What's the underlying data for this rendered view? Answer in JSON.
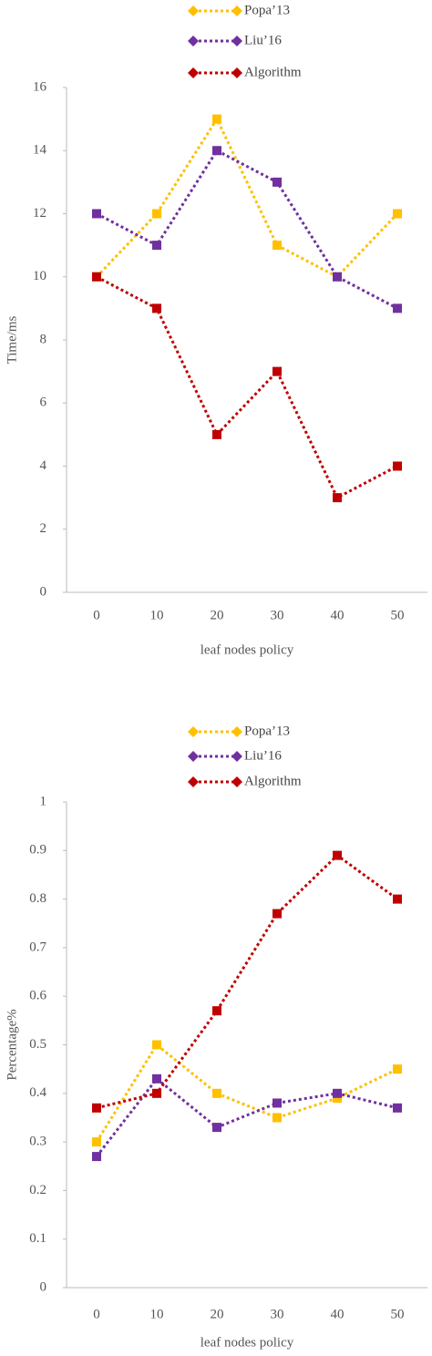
{
  "chart_data": [
    {
      "type": "line",
      "y_label": "Time/ms",
      "x_label": "leaf nodes policy",
      "categories": [
        "0",
        "10",
        "20",
        "30",
        "40",
        "50"
      ],
      "ylim": [
        0,
        16
      ],
      "yticks": [
        0,
        2,
        4,
        6,
        8,
        10,
        12,
        14,
        16
      ],
      "series": [
        {
          "name": "Popa’13",
          "color": "#FFC000",
          "values": [
            10,
            12,
            15,
            11,
            10,
            12
          ]
        },
        {
          "name": "Liu’16",
          "color": "#7030A0",
          "values": [
            12,
            11,
            14,
            13,
            10,
            9
          ]
        },
        {
          "name": "Algorithm",
          "color": "#C00000",
          "values": [
            10,
            9,
            5,
            7,
            3,
            4
          ]
        }
      ]
    },
    {
      "type": "line",
      "y_label": "Percentage%",
      "x_label": "leaf nodes policy",
      "categories": [
        "0",
        "10",
        "20",
        "30",
        "40",
        "50"
      ],
      "ylim": [
        0,
        1
      ],
      "yticks": [
        0,
        0.1,
        0.2,
        0.3,
        0.4,
        0.5,
        0.6,
        0.7,
        0.8,
        0.9,
        1
      ],
      "series": [
        {
          "name": "Popa’13",
          "color": "#FFC000",
          "values": [
            0.3,
            0.5,
            0.4,
            0.35,
            0.39,
            0.45
          ]
        },
        {
          "name": "Liu’16",
          "color": "#7030A0",
          "values": [
            0.27,
            0.43,
            0.33,
            0.38,
            0.4,
            0.37
          ]
        },
        {
          "name": "Algorithm",
          "color": "#C00000",
          "values": [
            0.37,
            0.4,
            0.57,
            0.77,
            0.89,
            0.8
          ]
        }
      ]
    }
  ]
}
